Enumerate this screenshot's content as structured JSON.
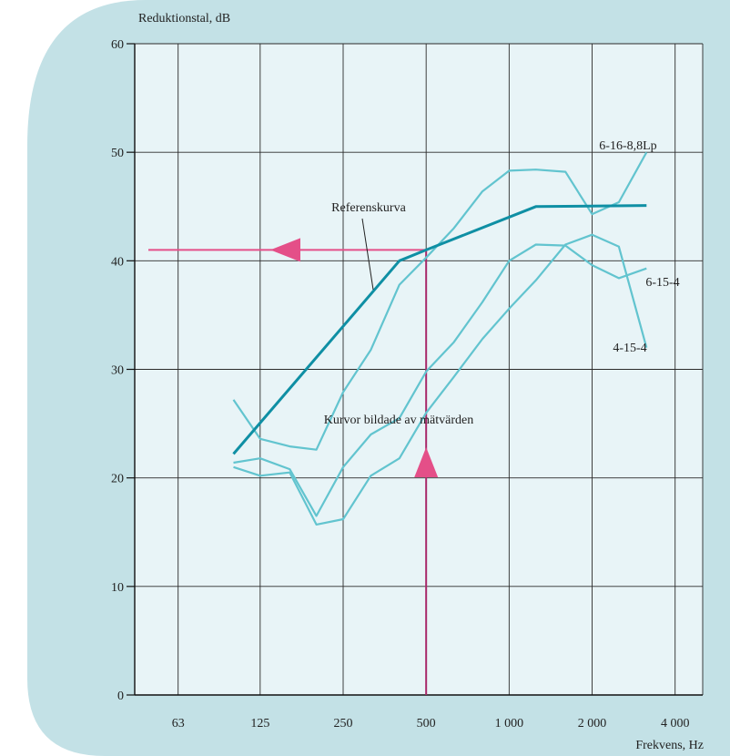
{
  "chart_data": {
    "type": "line",
    "ylabel": "Reduktionstal, dB",
    "xlabel": "Frekvens, Hz",
    "ylim": [
      0,
      60
    ],
    "x_scale": "log",
    "x_ticks": [
      63,
      125,
      250,
      500,
      1000,
      2000,
      4000
    ],
    "x_tick_labels": [
      "63",
      "125",
      "250",
      "500",
      "1 000",
      "2 000",
      "4 000"
    ],
    "y_ticks": [
      0,
      10,
      20,
      30,
      40,
      50,
      60
    ],
    "grid": true,
    "colors": {
      "background": "#c3e1e6",
      "plot_area": "#e8f4f7",
      "reference": "#0f8fa4",
      "measured": "#62c4cf",
      "marker": "#e44f88",
      "vline": "#a8296a"
    },
    "series": [
      {
        "name": "Referenskurva",
        "role": "reference",
        "points": [
          [
            100,
            22.2
          ],
          [
            400,
            40.0
          ],
          [
            500,
            41.0
          ],
          [
            1250,
            45.0
          ],
          [
            3150,
            45.1
          ]
        ]
      },
      {
        "name": "6-16-8,8Lp",
        "role": "measured",
        "points": [
          [
            100,
            27.2
          ],
          [
            125,
            23.6
          ],
          [
            160,
            22.9
          ],
          [
            200,
            22.6
          ],
          [
            250,
            27.9
          ],
          [
            315,
            31.8
          ],
          [
            400,
            37.8
          ],
          [
            500,
            40.3
          ],
          [
            630,
            43.0
          ],
          [
            800,
            46.4
          ],
          [
            1000,
            48.3
          ],
          [
            1250,
            48.4
          ],
          [
            1600,
            48.2
          ],
          [
            2000,
            44.3
          ],
          [
            2500,
            45.4
          ],
          [
            3150,
            50.0
          ]
        ]
      },
      {
        "name": "6-15-4",
        "role": "measured",
        "points": [
          [
            100,
            21.4
          ],
          [
            125,
            21.8
          ],
          [
            160,
            20.8
          ],
          [
            200,
            16.5
          ],
          [
            250,
            21.0
          ],
          [
            315,
            24.0
          ],
          [
            400,
            25.5
          ],
          [
            500,
            29.8
          ],
          [
            630,
            32.5
          ],
          [
            800,
            36.2
          ],
          [
            1000,
            40.0
          ],
          [
            1250,
            41.5
          ],
          [
            1600,
            41.4
          ],
          [
            2000,
            39.6
          ],
          [
            2500,
            38.4
          ],
          [
            3150,
            39.3
          ]
        ]
      },
      {
        "name": "4-15-4",
        "role": "measured",
        "points": [
          [
            100,
            21.0
          ],
          [
            125,
            20.2
          ],
          [
            160,
            20.5
          ],
          [
            200,
            15.7
          ],
          [
            250,
            16.2
          ],
          [
            315,
            20.2
          ],
          [
            400,
            21.8
          ],
          [
            500,
            26.0
          ],
          [
            630,
            29.3
          ],
          [
            800,
            32.8
          ],
          [
            1000,
            35.6
          ],
          [
            1250,
            38.2
          ],
          [
            1600,
            41.5
          ],
          [
            2000,
            42.4
          ],
          [
            2500,
            41.3
          ],
          [
            3150,
            32.0
          ]
        ]
      }
    ],
    "reading": {
      "frequency": 500,
      "value": 41
    },
    "annotations": {
      "reference_label": "Referenskurva",
      "measured_label": "Kurvor bildade av mätvärden"
    }
  }
}
